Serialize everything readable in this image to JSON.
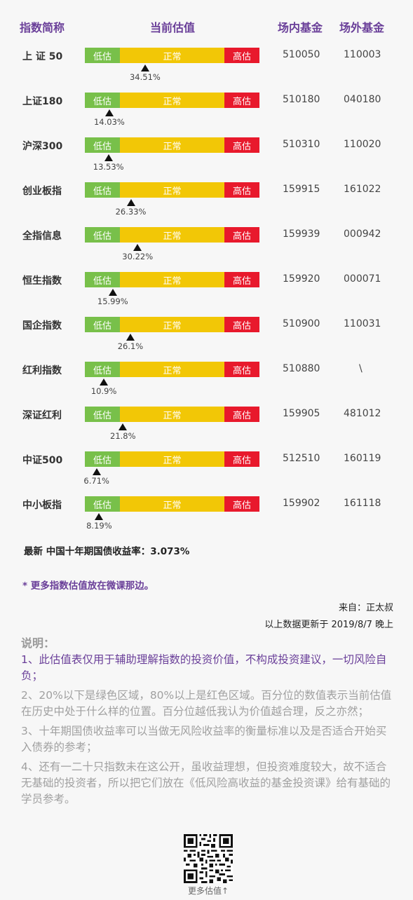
{
  "header": {
    "name": "指数简称",
    "valuation": "当前估值",
    "on_exchange": "场内基金",
    "off_exchange": "场外基金"
  },
  "bar_labels": {
    "low": "低估",
    "mid": "正常",
    "high": "高估"
  },
  "colors": {
    "low": "#78c04a",
    "mid": "#f2c706",
    "high": "#e8192c",
    "accent": "#6a3f99"
  },
  "rows": [
    {
      "name": "上 证 50",
      "percentile": "34.51%",
      "percentile_value": 34.51,
      "code_in": "510050",
      "code_out": "110003"
    },
    {
      "name": "上证180",
      "percentile": "14.03%",
      "percentile_value": 14.03,
      "code_in": "510180",
      "code_out": "040180"
    },
    {
      "name": "沪深300",
      "percentile": "13.53%",
      "percentile_value": 13.53,
      "code_in": "510310",
      "code_out": "110020"
    },
    {
      "name": "创业板指",
      "percentile": "26.33%",
      "percentile_value": 26.33,
      "code_in": "159915",
      "code_out": "161022"
    },
    {
      "name": "全指信息",
      "percentile": "30.22%",
      "percentile_value": 30.22,
      "code_in": "159939",
      "code_out": "000942"
    },
    {
      "name": "恒生指数",
      "percentile": "15.99%",
      "percentile_value": 15.99,
      "code_in": "159920",
      "code_out": "000071"
    },
    {
      "name": "国企指数",
      "percentile": "26.1%",
      "percentile_value": 26.1,
      "code_in": "510900",
      "code_out": "110031"
    },
    {
      "name": "红利指数",
      "percentile": "10.9%",
      "percentile_value": 10.9,
      "code_in": "510880",
      "code_out": "\\"
    },
    {
      "name": "深证红利",
      "percentile": "21.8%",
      "percentile_value": 21.8,
      "code_in": "159905",
      "code_out": "481012"
    },
    {
      "name": "中证500",
      "percentile": "6.71%",
      "percentile_value": 6.71,
      "code_in": "512510",
      "code_out": "160119"
    },
    {
      "name": "中小板指",
      "percentile": "8.19%",
      "percentile_value": 8.19,
      "code_in": "159902",
      "code_out": "161118"
    }
  ],
  "bond_yield": "最新 中国十年期国债收益率：3.073%",
  "more_note": "* 更多指数估值放在微课那边。",
  "source": "来自：正太叔",
  "updated": "以上数据更新于 2019/8/7 晚上",
  "notes_title": "说明：",
  "notes": [
    "1、此估值表仅用于辅助理解指数的投资价值，不构成投资建议，一切风险自负；",
    "2、20%以下是绿色区域，80%以上是红色区域。百分位的数值表示当前估值在历史中处于什么样的位置。百分位越低我认为价值越合理，反之亦然；",
    "3、十年期国债收益率可以当做无风险收益率的衡量标准以及是否适合开始买入债券的参考；",
    "4、还有一二十只指数未在这公开，虽收益理想，但投资难度较大，故不适合无基础的投资者，所以把它们放在《低风险高收益的基金投资课》给有基础的学员参考。"
  ],
  "qr_label": "更多估值↑"
}
